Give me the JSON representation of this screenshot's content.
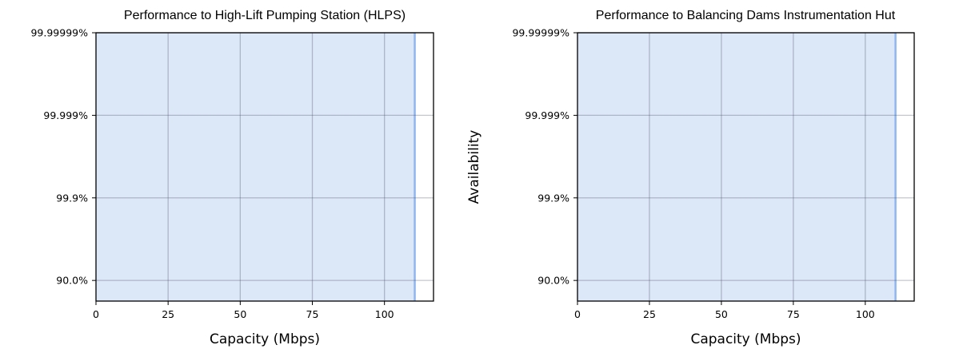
{
  "chart_data": [
    {
      "type": "area",
      "title": "Performance to High-Lift Pumping Station (HLPS)",
      "xlabel": "Capacity (Mbps)",
      "ylabel": "",
      "x_ticks": [
        0,
        25,
        50,
        75,
        100
      ],
      "x_tick_labels": [
        "0",
        "25",
        "50",
        "75",
        "100"
      ],
      "xlim": [
        0,
        117
      ],
      "y_scale": "unavailability-log",
      "y_tick_labels": [
        "99.99999%",
        "99.999%",
        "99.9%",
        "90.0%"
      ],
      "y_ticks": [
        99.99999,
        99.999,
        99.9,
        90.0
      ],
      "ylim_nines": [
        0.5,
        7
      ],
      "grid": true,
      "series": [
        {
          "x": [
            0,
            110.5
          ],
          "availability_top": 99.99999,
          "max_capacity": 110.5
        }
      ],
      "fill_color": "#dce7f8",
      "line_color": "#8fb6ee"
    },
    {
      "type": "area",
      "title": "Performance to Balancing Dams Instrumentation Hut",
      "xlabel": "Capacity (Mbps)",
      "ylabel": "Availability",
      "x_ticks": [
        0,
        25,
        50,
        75,
        100
      ],
      "x_tick_labels": [
        "0",
        "25",
        "50",
        "75",
        "100"
      ],
      "xlim": [
        0,
        117
      ],
      "y_scale": "unavailability-log",
      "y_tick_labels": [
        "99.99999%",
        "99.999%",
        "99.9%",
        "90.0%"
      ],
      "y_ticks": [
        99.99999,
        99.999,
        99.9,
        90.0
      ],
      "ylim_nines": [
        0.5,
        7
      ],
      "grid": true,
      "series": [
        {
          "x": [
            0,
            110.5
          ],
          "availability_top": 99.99999,
          "max_capacity": 110.5
        }
      ],
      "fill_color": "#dce7f8",
      "line_color": "#8fb6ee"
    }
  ]
}
